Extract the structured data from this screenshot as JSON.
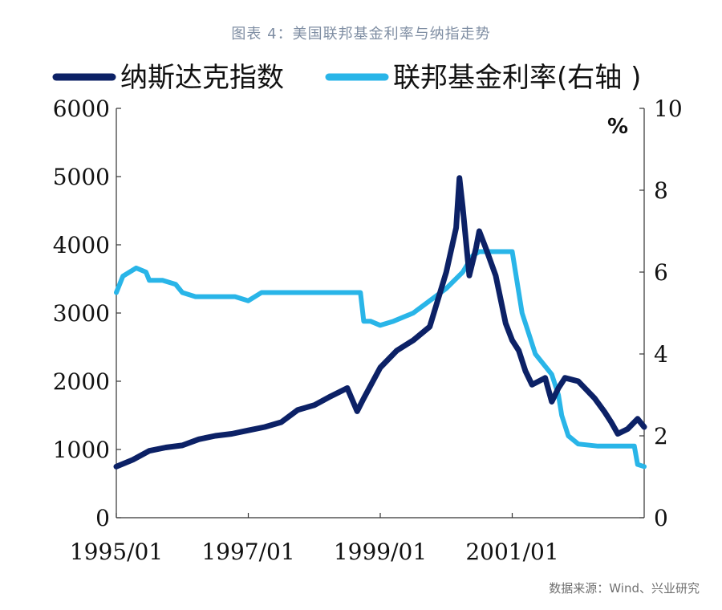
{
  "caption": "图表 4：美国联邦基金利率与纳指走势",
  "source": "数据来源：Wind、兴业研究",
  "colors": {
    "nasdaq": "#0c2166",
    "fed_rate": "#29b5e8",
    "axis": "#333333"
  },
  "chart_data": {
    "type": "line",
    "legend_placement": "top",
    "grid": false,
    "x_tick_labels": [
      "1995/01",
      "1997/01",
      "1999/01",
      "2001/01"
    ],
    "x_ticks": [
      1995.0,
      1997.0,
      1999.0,
      2001.0
    ],
    "xlim": [
      1995.0,
      2003.0
    ],
    "ylim_left": [
      0,
      6000
    ],
    "y_ticks_left": [
      "0",
      "1000",
      "2000",
      "3000",
      "4000",
      "5000",
      "6000"
    ],
    "ylim_right": [
      0,
      10
    ],
    "y_ticks_right": [
      "0",
      "2",
      "4",
      "6",
      "8",
      "10"
    ],
    "right_unit": "%",
    "series": [
      {
        "name": "纳斯达克指数",
        "axis": "left",
        "x": [
          1995.0,
          1995.25,
          1995.5,
          1995.75,
          1996.0,
          1996.25,
          1996.5,
          1996.75,
          1997.0,
          1997.25,
          1997.5,
          1997.75,
          1998.0,
          1998.25,
          1998.5,
          1998.65,
          1998.75,
          1999.0,
          1999.25,
          1999.5,
          1999.75,
          2000.0,
          2000.15,
          2000.2,
          2000.25,
          2000.35,
          2000.45,
          2000.5,
          2000.6,
          2000.75,
          2000.9,
          2001.0,
          2001.1,
          2001.2,
          2001.3,
          2001.5,
          2001.6,
          2001.7,
          2001.8,
          2002.0,
          2002.1,
          2002.25,
          2002.4,
          2002.5,
          2002.6,
          2002.75,
          2002.9,
          2003.0
        ],
        "values": [
          750,
          850,
          980,
          1030,
          1060,
          1150,
          1200,
          1230,
          1280,
          1330,
          1400,
          1580,
          1650,
          1780,
          1900,
          1560,
          1750,
          2200,
          2450,
          2600,
          2800,
          3600,
          4250,
          4980,
          4550,
          3550,
          3950,
          4200,
          3950,
          3550,
          2850,
          2600,
          2450,
          2150,
          1950,
          2050,
          1700,
          1900,
          2050,
          2000,
          1900,
          1750,
          1550,
          1400,
          1230,
          1300,
          1450,
          1330
        ]
      },
      {
        "name": "联邦基金利率(右轴 )",
        "axis": "right",
        "x": [
          1995.0,
          1995.1,
          1995.3,
          1995.45,
          1995.5,
          1995.7,
          1995.9,
          1996.0,
          1996.2,
          1996.5,
          1996.8,
          1997.0,
          1997.2,
          1997.5,
          1997.8,
          1998.0,
          1998.2,
          1998.5,
          1998.7,
          1998.75,
          1998.85,
          1999.0,
          1999.2,
          1999.5,
          1999.75,
          2000.0,
          2000.25,
          2000.4,
          2000.5,
          2000.6,
          2000.75,
          2001.0,
          2001.05,
          2001.15,
          2001.25,
          2001.35,
          2001.45,
          2001.6,
          2001.7,
          2001.75,
          2001.85,
          2002.0,
          2002.3,
          2002.6,
          2002.85,
          2002.9,
          2003.0
        ],
        "values": [
          5.5,
          5.9,
          6.1,
          6.0,
          5.8,
          5.8,
          5.7,
          5.5,
          5.4,
          5.4,
          5.4,
          5.3,
          5.5,
          5.5,
          5.5,
          5.5,
          5.5,
          5.5,
          5.5,
          4.8,
          4.8,
          4.7,
          4.8,
          5.0,
          5.3,
          5.6,
          6.0,
          6.4,
          6.5,
          6.5,
          6.5,
          6.5,
          6.0,
          5.0,
          4.5,
          4.0,
          3.8,
          3.5,
          3.0,
          2.5,
          2.0,
          1.8,
          1.75,
          1.75,
          1.75,
          1.3,
          1.25
        ]
      }
    ]
  }
}
